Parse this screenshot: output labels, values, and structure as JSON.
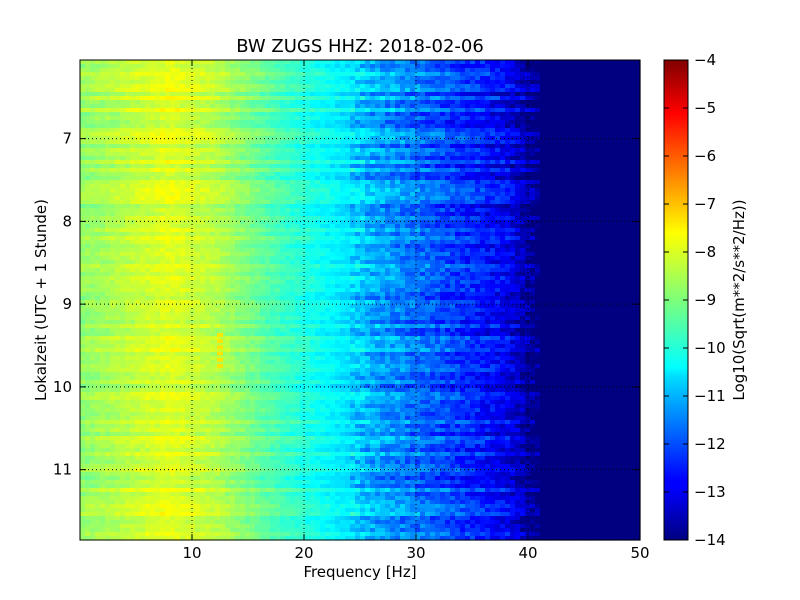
{
  "chart_data": {
    "type": "heatmap",
    "title": "BW ZUGS HHZ: 2018-02-06",
    "xlabel": "Frequency [Hz]",
    "ylabel": "Lokalzeit (UTC + 1 Stunde)",
    "xlim": [
      0,
      50
    ],
    "ylim": [
      6.05,
      11.85
    ],
    "y_inverted": true,
    "x_ticks": [
      10,
      20,
      30,
      40,
      50
    ],
    "y_ticks": [
      7,
      8,
      9,
      10,
      11
    ],
    "grid": true,
    "colormap": "jet",
    "colorbar": {
      "label": "Log10(Sqrt(m**2/s**2/Hz))",
      "range": [
        -14,
        -4
      ],
      "ticks": [
        -4,
        -5,
        -6,
        -7,
        -8,
        -9,
        -10,
        -11,
        -12,
        -13,
        -14
      ]
    },
    "frequency_profile": {
      "frequency_hz": [
        0,
        2,
        5,
        8,
        10,
        12,
        14,
        16,
        18,
        20,
        22,
        24,
        26,
        28,
        30,
        32,
        34,
        36,
        38,
        39,
        40,
        41,
        42,
        45,
        50
      ],
      "level": [
        -8.8,
        -8.6,
        -8.3,
        -8.0,
        -8.2,
        -8.4,
        -8.8,
        -9.2,
        -9.6,
        -9.9,
        -10.2,
        -10.5,
        -11.0,
        -11.3,
        -11.6,
        -11.9,
        -12.2,
        -12.5,
        -12.8,
        -13.2,
        -13.6,
        -14.0,
        -14.0,
        -14.0,
        -14.0
      ]
    },
    "annotations": [
      {
        "frequency_hz": 12.5,
        "time_from": 9.35,
        "time_to": 9.8,
        "level": -7.5
      }
    ]
  },
  "colors": {
    "colorbar_top": "#800000",
    "colorbar_bottom": "#000080",
    "grid": "#000000"
  }
}
